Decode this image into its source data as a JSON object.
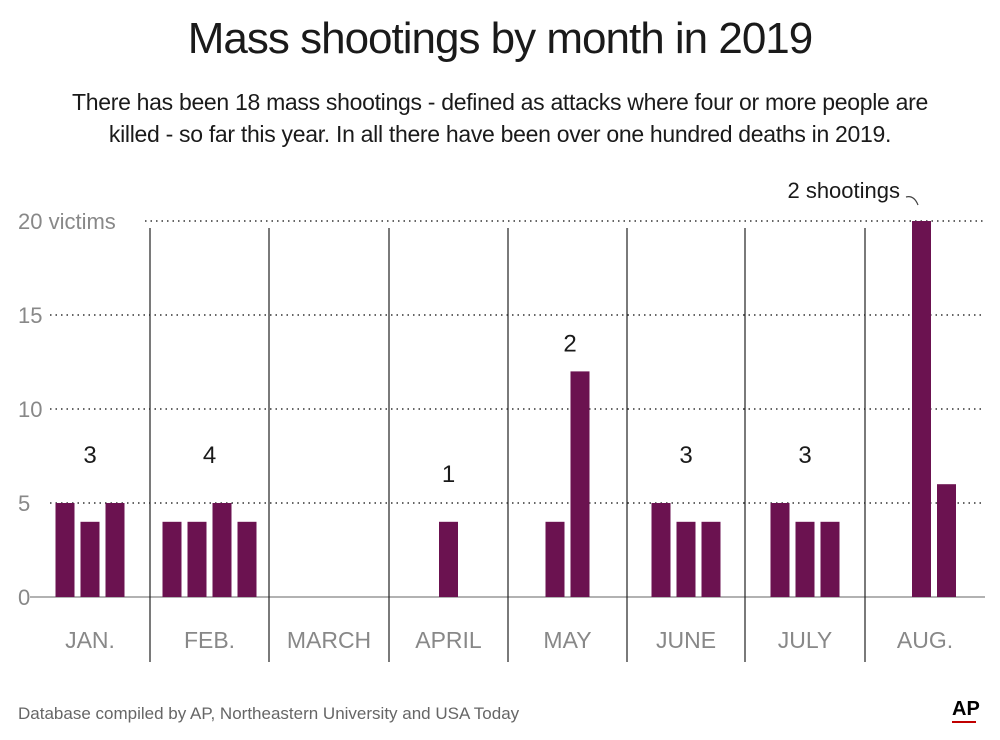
{
  "title": "Mass shootings by month in 2019",
  "subtitle": "There has been 18 mass shootings - defined as attacks where four or more people are killed - so far this year. In all there have been over one hundred deaths in 2019.",
  "source": "Database compiled by AP, Northeastern University and USA Today",
  "logo_text": "AP",
  "colors": {
    "bar": "#6b1250",
    "axis": "#999999",
    "grid": "#333333",
    "tick": "#888888",
    "label": "#1a1a1a"
  },
  "chart_data": {
    "type": "bar",
    "title": "Mass shootings by month in 2019",
    "ylabel": "victims",
    "ylim": [
      0,
      20
    ],
    "yticks": [
      {
        "value": 0,
        "label": "0"
      },
      {
        "value": 5,
        "label": "5"
      },
      {
        "value": 10,
        "label": "10"
      },
      {
        "value": 15,
        "label": "15"
      },
      {
        "value": 20,
        "label": "20 victims"
      }
    ],
    "months": [
      {
        "label": "JAN.",
        "victims": [
          5,
          4,
          5
        ],
        "count_label": "3"
      },
      {
        "label": "FEB.",
        "victims": [
          4,
          4,
          5,
          4
        ],
        "count_label": "4"
      },
      {
        "label": "MARCH",
        "victims": [],
        "count_label": ""
      },
      {
        "label": "APRIL",
        "victims": [
          4
        ],
        "count_label": "1"
      },
      {
        "label": "MAY",
        "victims": [
          4,
          12
        ],
        "count_label": "2"
      },
      {
        "label": "JUNE",
        "victims": [
          5,
          4,
          4
        ],
        "count_label": "3"
      },
      {
        "label": "JULY",
        "victims": [
          5,
          4,
          4
        ],
        "count_label": "3"
      },
      {
        "label": "AUG.",
        "victims": [
          20,
          6
        ],
        "count_label": "2 shootings"
      }
    ]
  }
}
